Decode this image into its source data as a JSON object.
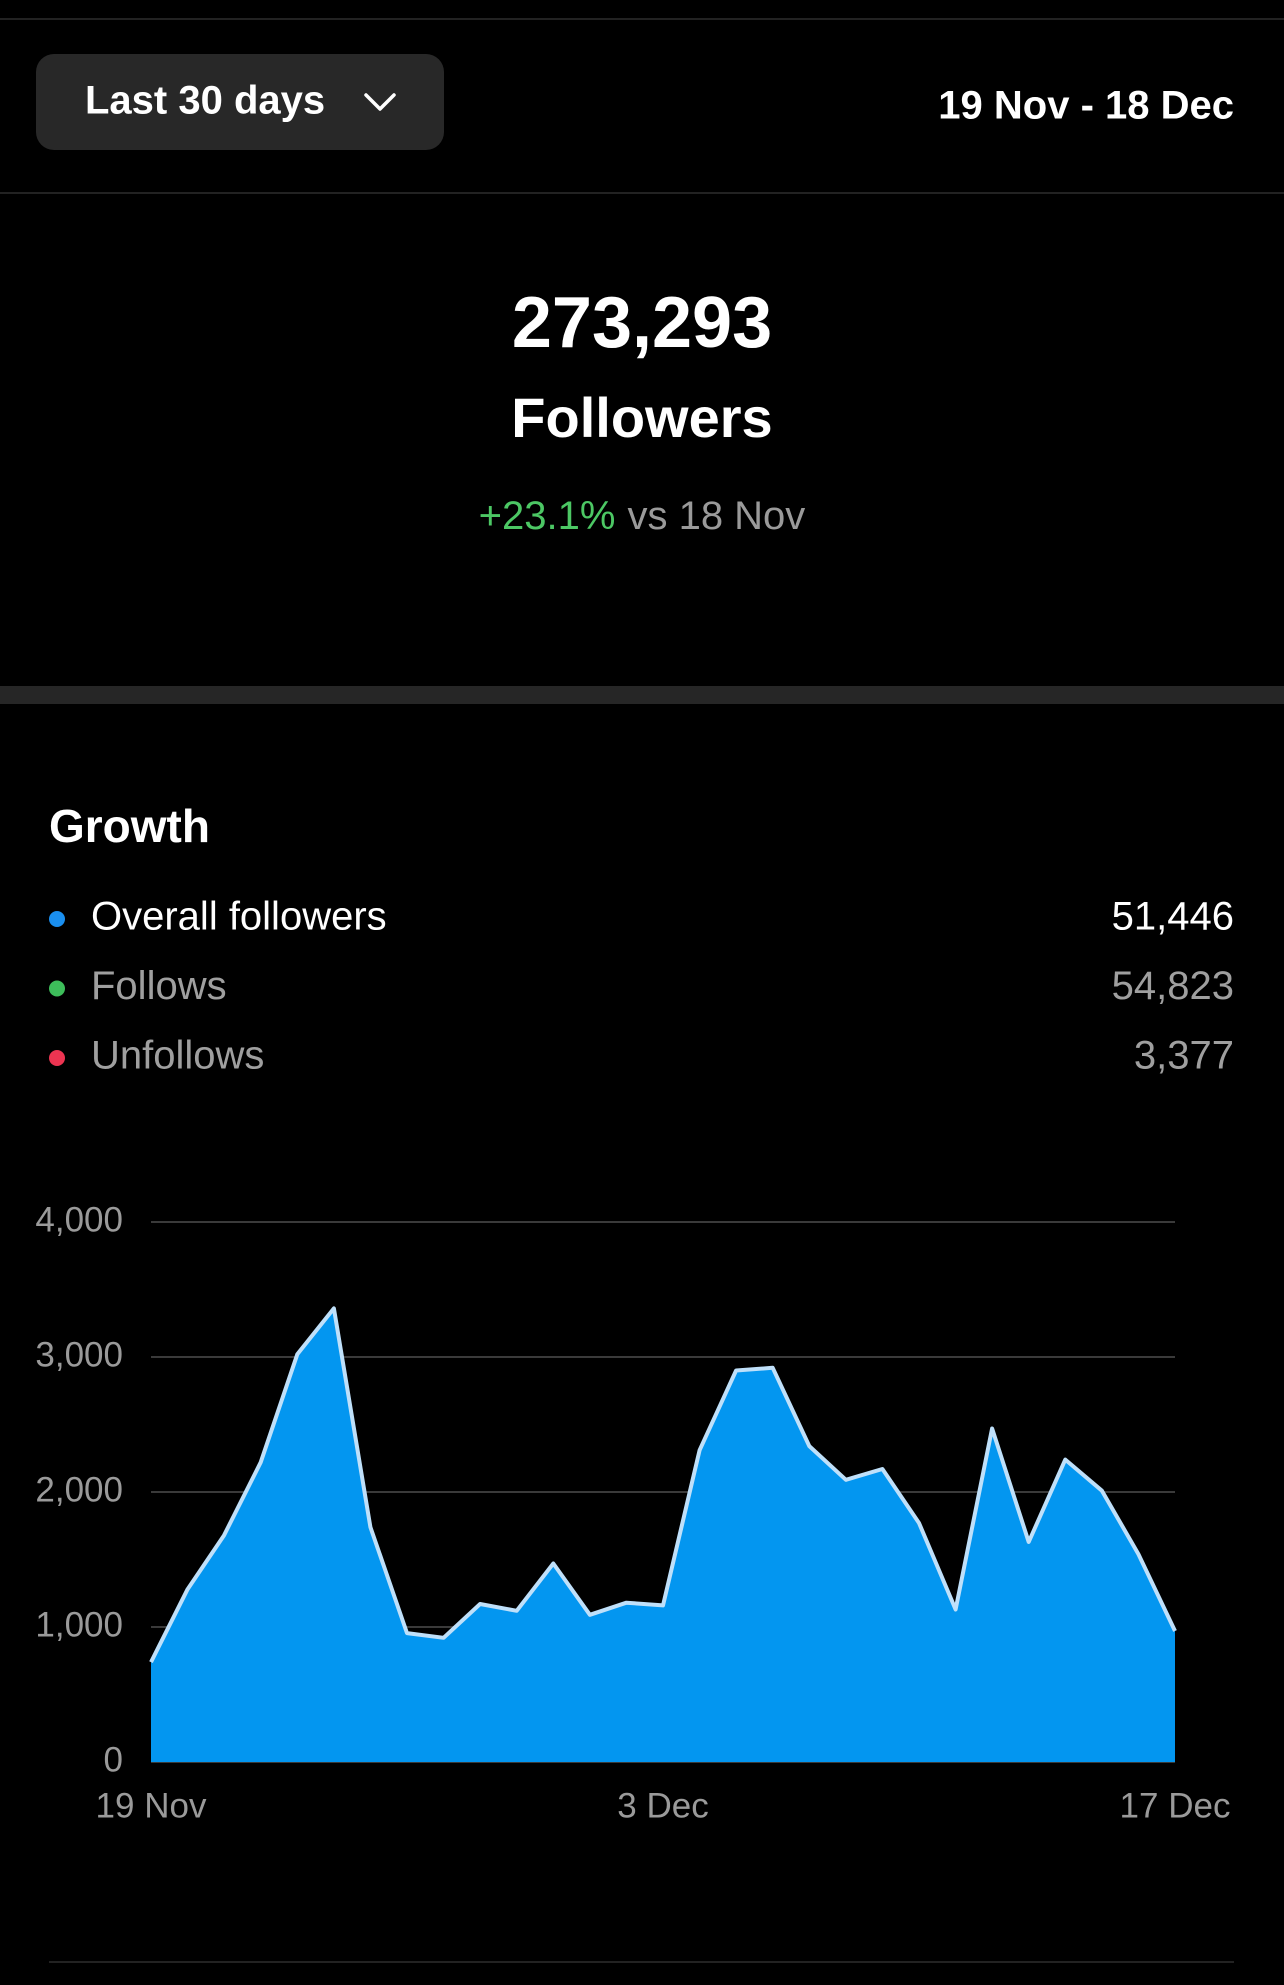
{
  "header": {
    "range_button": "Last 30 days",
    "date_range": "19 Nov - 18 Dec"
  },
  "summary": {
    "total": "273,293",
    "label": "Followers",
    "change": "+23.1%",
    "comparison": "vs 18 Nov"
  },
  "growth": {
    "title": "Growth",
    "legend": [
      {
        "label": "Overall followers",
        "value": "51,446",
        "color": "#1a8ff0"
      },
      {
        "label": "Follows",
        "value": "54,823",
        "color": "#3dbd5a"
      },
      {
        "label": "Unfollows",
        "value": "3,377",
        "color": "#ec3451"
      }
    ]
  },
  "chart_data": {
    "type": "area",
    "categories": [
      "19 Nov",
      null,
      null,
      null,
      null,
      null,
      null,
      null,
      null,
      null,
      null,
      null,
      null,
      null,
      "3 Dec",
      null,
      null,
      null,
      null,
      null,
      null,
      null,
      null,
      null,
      null,
      null,
      null,
      null,
      "17 Dec"
    ],
    "series": [
      {
        "color": "#0396f0",
        "values": [
          740,
          1280,
          1680,
          2220,
          3020,
          3360,
          1740,
          955,
          920,
          1170,
          1120,
          1470,
          1090,
          1180,
          1160,
          2310,
          2900,
          2920,
          2340,
          2090,
          2170,
          1770,
          1130,
          2470,
          1630,
          2240,
          2010,
          1540,
          970
        ]
      }
    ],
    "ylim": [
      0,
      4000
    ],
    "yticks": [
      0,
      {
        "value": 1000,
        "label": "1,000"
      },
      {
        "value": 2000,
        "label": "2,000"
      },
      {
        "value": 3000,
        "label": "3,000"
      },
      {
        "value": 4000,
        "label": "4,000"
      }
    ],
    "grid": true
  }
}
